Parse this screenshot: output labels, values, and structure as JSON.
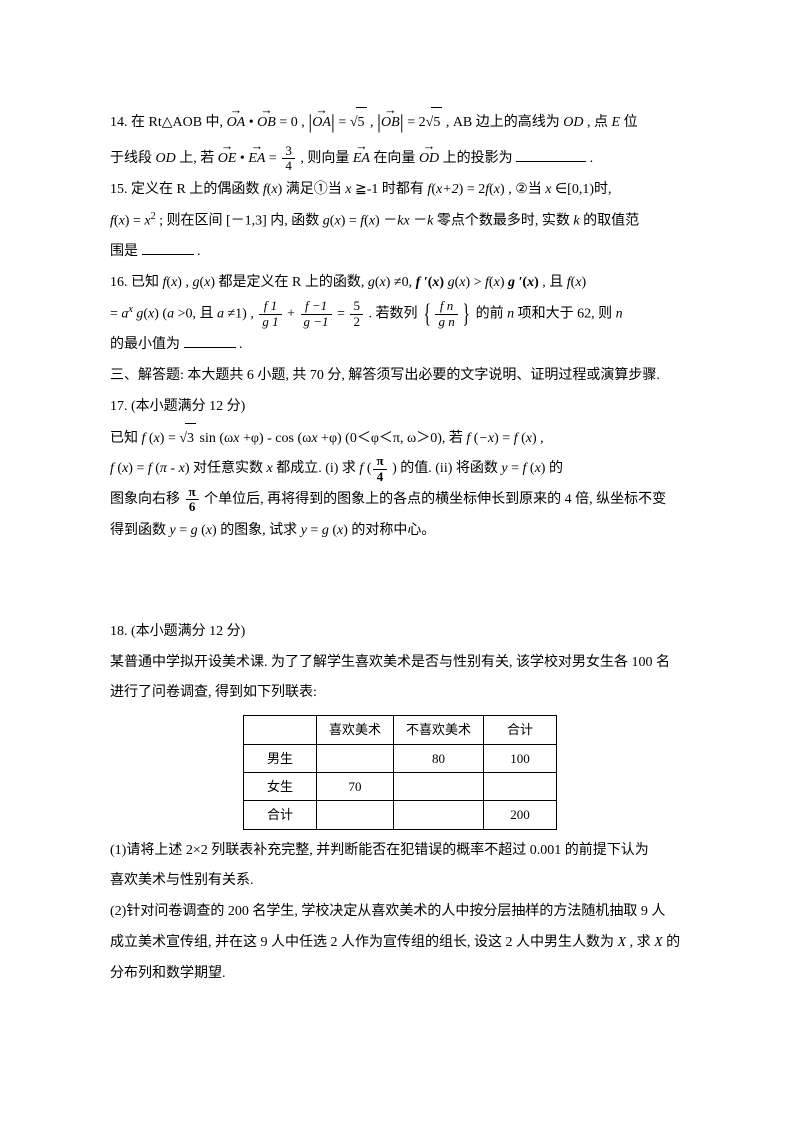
{
  "q14": {
    "l1a": "14. 在 Rt△AOB 中, ",
    "oa": "OA",
    "dot": " • ",
    "ob": "OB",
    "eq0": " = 0 , ",
    "absL": "|",
    "absR": "|",
    "oa2": "OA",
    "eqsqrt5a": " = ",
    "root": "√",
    "five": "5",
    "comma1": " , ",
    "ob2": "OB",
    "eq2sqrt5": " = 2",
    "five2": "5",
    "l1b": " , AB 边上的高线为 ",
    "od": "OD",
    "l1c": ", 点 ",
    "E": "E",
    "l1d": " 位",
    "l2a": "于线段 ",
    "od2": "OD",
    "l2b": " 上,  若 ",
    "oe": "OE",
    "ea": "EA",
    "eq34": " = ",
    "frac34n": "3",
    "frac34d": "4",
    "l2c": " , 则向量 ",
    "ea2": "EA",
    "l2d": " 在向量 ",
    "od3": "OD",
    "l2e": " 上的投影为",
    "period": "."
  },
  "q15": {
    "l1": "15. 定义在 R 上的偶函数 ",
    "fx": "f",
    "x": "x",
    "l1b": " 满足①当 ",
    "xge": "x",
    "l1c": "≧-1 时都有 ",
    "fx2": "f",
    "xplus2": "x+2",
    "eq": " = 2",
    "fx3": "f",
    "x2": "x",
    "l1d": ", ②当 ",
    "xin": "x",
    "l1e": "∈[0,1)时,",
    "l2a": "f",
    "l2ax": "x",
    "l2eq": " = ",
    "xsq": "x",
    "sq": "2",
    "l2b": "; 则在区间 [－1,3] 内, 函数 ",
    "gx": "g",
    "l2bx": "x",
    "l2c": " = ",
    "fx4": "f",
    "l2cx": "x",
    "l2d": "－",
    "k": "k",
    "l2dx": "x",
    "l2e": "－",
    "k2": "k",
    "l2f": " 零点个数最多时, 实数 ",
    "k3": "k",
    "l2g": " 的取值范",
    "l3": "围是",
    "period": "."
  },
  "q16": {
    "l1": "16.   已知 ",
    "fx": "f",
    "x": "x",
    "c1": ", ",
    "gx": "g",
    "gx_x": "x",
    "l1b": " 都是定义在 R 上的函数, ",
    "gx2": "g",
    "gx2x": "x",
    "ne0": "≠0,  ",
    "fprime": "f ′",
    "fpx": "x",
    "gx3": "g",
    "gx3x": "x",
    "gt": ">",
    "fx2": "f",
    "fx2x": "x",
    "gprime": " g ′",
    "gpx": "x",
    "l1c": " , 且 ",
    "fx3": "f",
    "fx3x": "x",
    "l2a": " = ",
    "ax": "a",
    "xexp": "x",
    "gx4": "g",
    "gx4x": "x",
    "l2b": " (",
    "a": "a",
    "l2c": ">0,  且 ",
    "a2": "a",
    "l2d": "≠1) , ",
    "f1n": "f   1",
    "f1d": "g   1",
    "plus": " + ",
    "fn1n": "f   −1",
    "fn1d": "g   −1",
    "eq52": " = ",
    "n52": "5",
    "d52": "2",
    "l2e": ". 若数列",
    "fnn": "f   n",
    "fnd": "g   n",
    "l2f": "的前 ",
    "n": "n",
    "l2g": " 项和大于 62, 则 ",
    "n2": "n",
    "l3": "的最小值为",
    "period": "."
  },
  "sec3": "三、解答题: 本大题共 6 小题, 共 70 分, 解答须写出必要的文字说明、证明过程或演算步骤.",
  "q17h": "17. (本小题满分 12 分)",
  "q17": {
    "l1a": "已知 ",
    "f": "f",
    "x": "x",
    "eq": " =",
    "root": "√",
    "three": "3",
    "sin": " sin (ω",
    "xv": "x",
    "l1b": "+φ)  -  cos (ω",
    "xv2": "x",
    "l1c": "+φ) (0＜φ＜π,  ω＞0), 若 ",
    "f2": "f",
    "negx": "−x",
    "l1d": " = ",
    "f3": "f",
    "x3": "x",
    "l1e": ",",
    "l2a": "f",
    "l2ax": "x",
    "l2b": " = ",
    "f4": "f",
    "pimx": "π - x",
    "l2c": "对任意实数 ",
    "x4": "x",
    "l2d": " 都成立.  (i) 求 ",
    "f5": "f",
    "pi4n": "π",
    "pi4d": "4",
    "l2e": ") 的值.  (ii) 将函数 ",
    "y": "y",
    "l2f": " = ",
    "f6": "f",
    "x6": "x",
    "l2g": "的",
    "l3a": "图象向右移",
    "pi6n": "π",
    "pi6d": "6",
    "l3b": "个单位后, 再将得到的图象上的各点的横坐标伸长到原来的 4 倍, 纵坐标不变",
    "l4a": "得到函数 ",
    "y2": "y",
    "l4b": " = ",
    "g": "g",
    "gx": "x",
    "l4c": "的图象, 试求 ",
    "y3": "y",
    "l4d": " = ",
    "g2": "g",
    "gx2": "x",
    "l4e": "的对称中心。"
  },
  "q18h": "18. (本小题满分 12 分)",
  "q18": {
    "l1": "某普通中学拟开设美术课. 为了了解学生喜欢美术是否与性别有关, 该学校对男女生各 100 名",
    "l2": "进行了问卷调查, 得到如下列联表:",
    "tbl": {
      "h0": "",
      "h1": "喜欢美术",
      "h2": "不喜欢美术",
      "h3": "合计",
      "r1c0": "男生",
      "r1c1": "",
      "r1c2": "80",
      "r1c3": "100",
      "r2c0": "女生",
      "r2c1": "70",
      "r2c2": "",
      "r2c3": "",
      "r3c0": "合计",
      "r3c1": "",
      "r3c2": "",
      "r3c3": "200"
    },
    "p1": "(1)请将上述 2×2 列联表补充完整, 并判断能否在犯错误的概率不超过 0.001 的前提下认为",
    "p1b": "喜欢美术与性别有关系.",
    "p2": "(2)针对问卷调查的 200 名学生, 学校决定从喜欢美术的人中按分层抽样的方法随机抽取 9 人",
    "p2b": "成立美术宣传组, 并在这 9 人中任选 2 人作为宣传组的组长, 设这 2 人中男生人数为 ",
    "X": "X",
    "p2c": ", 求 ",
    "X2": "X",
    "p2d": " 的",
    "p3": "分布列和数学期望."
  }
}
